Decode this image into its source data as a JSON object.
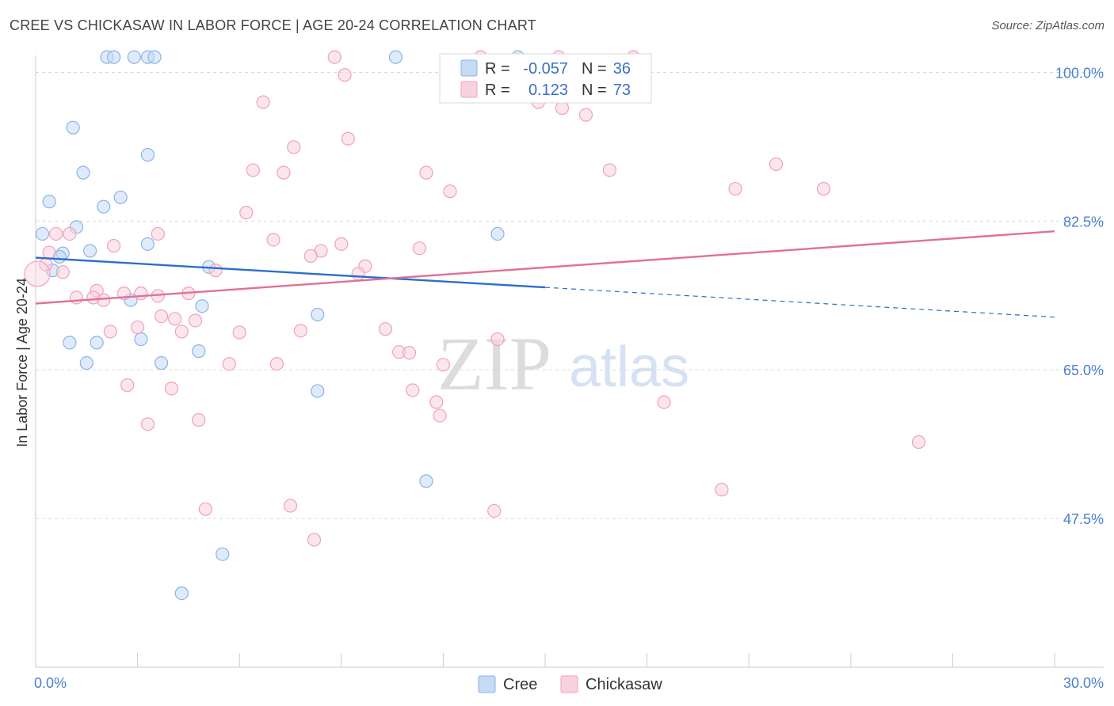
{
  "chart_data": {
    "type": "scatter",
    "title": "CREE VS CHICKASAW IN LABOR FORCE | AGE 20-24 CORRELATION CHART",
    "source": "Source: ZipAtlas.com",
    "ylabel": "In Labor Force | Age 20-24",
    "xlabel": "",
    "xlim": [
      0,
      30
    ],
    "ylim": [
      30,
      102
    ],
    "x_ticks": [
      {
        "value": 0,
        "label": "0.0%"
      },
      {
        "value": 30,
        "label": "30.0%"
      }
    ],
    "y_ticks": [
      {
        "value": 100,
        "label": "100.0%"
      },
      {
        "value": 82.5,
        "label": "82.5%"
      },
      {
        "value": 65,
        "label": "65.0%"
      },
      {
        "value": 47.5,
        "label": "47.5%"
      }
    ],
    "grid": true,
    "legend_position": "top-center",
    "series": [
      {
        "name": "Cree",
        "color": "#8ab4e8",
        "fill": "#c5daf5",
        "line_color": "#2b6fcc",
        "R": "-0.057",
        "N": "36",
        "trend": {
          "x0": 0,
          "y0": 78.2,
          "x1": 15,
          "y1": 74.7,
          "dash_to": 30,
          "dash_y": 71.2
        },
        "points": [
          [
            2.1,
            101.8
          ],
          [
            2.3,
            101.8
          ],
          [
            2.9,
            101.8
          ],
          [
            3.3,
            101.8
          ],
          [
            3.5,
            101.8
          ],
          [
            10.6,
            101.8
          ],
          [
            14.2,
            101.8
          ],
          [
            1.1,
            93.5
          ],
          [
            3.3,
            90.3
          ],
          [
            1.4,
            88.2
          ],
          [
            0.4,
            84.8
          ],
          [
            2.5,
            85.3
          ],
          [
            2.0,
            84.2
          ],
          [
            1.2,
            81.8
          ],
          [
            0.2,
            81.0
          ],
          [
            3.3,
            79.8
          ],
          [
            1.6,
            79.0
          ],
          [
            0.8,
            78.7
          ],
          [
            0.7,
            78.3
          ],
          [
            0.5,
            76.7
          ],
          [
            5.1,
            77.1
          ],
          [
            2.8,
            73.2
          ],
          [
            4.9,
            72.5
          ],
          [
            8.3,
            71.5
          ],
          [
            3.1,
            68.6
          ],
          [
            1.0,
            68.2
          ],
          [
            1.8,
            68.2
          ],
          [
            4.8,
            67.2
          ],
          [
            1.5,
            65.8
          ],
          [
            3.7,
            65.8
          ],
          [
            8.3,
            62.5
          ],
          [
            11.5,
            51.9
          ],
          [
            5.5,
            43.3
          ],
          [
            4.3,
            38.7
          ],
          [
            13.6,
            81.0
          ]
        ]
      },
      {
        "name": "Chickasaw",
        "color": "#f0a0bc",
        "fill": "#f9d2e0",
        "line_color": "#e0709a",
        "R": "0.123",
        "N": "73",
        "trend": {
          "x0": 0,
          "y0": 72.8,
          "x1": 30,
          "y1": 81.3
        },
        "points": [
          [
            8.8,
            101.8
          ],
          [
            15.4,
            101.8
          ],
          [
            17.6,
            101.8
          ],
          [
            13.1,
            101.8
          ],
          [
            9.1,
            99.7
          ],
          [
            6.7,
            96.5
          ],
          [
            14.8,
            96.5
          ],
          [
            15.5,
            95.8
          ],
          [
            16.2,
            95.0
          ],
          [
            9.2,
            92.2
          ],
          [
            7.6,
            91.2
          ],
          [
            21.8,
            89.2
          ],
          [
            6.4,
            88.5
          ],
          [
            7.3,
            88.2
          ],
          [
            11.5,
            88.2
          ],
          [
            16.9,
            88.5
          ],
          [
            20.6,
            86.3
          ],
          [
            23.2,
            86.3
          ],
          [
            12.2,
            86.0
          ],
          [
            6.2,
            83.5
          ],
          [
            0.6,
            81.0
          ],
          [
            1.0,
            81.0
          ],
          [
            3.6,
            81.0
          ],
          [
            7.0,
            80.3
          ],
          [
            9.0,
            79.8
          ],
          [
            2.3,
            79.6
          ],
          [
            11.3,
            79.3
          ],
          [
            8.4,
            79.0
          ],
          [
            0.4,
            78.8
          ],
          [
            8.1,
            78.4
          ],
          [
            0.3,
            77.4
          ],
          [
            9.7,
            77.2
          ],
          [
            5.3,
            76.7
          ],
          [
            0.8,
            76.5
          ],
          [
            9.5,
            76.3
          ],
          [
            1.8,
            74.3
          ],
          [
            3.1,
            74.0
          ],
          [
            2.6,
            74.0
          ],
          [
            4.5,
            74.0
          ],
          [
            1.7,
            73.5
          ],
          [
            1.2,
            73.5
          ],
          [
            2.0,
            73.2
          ],
          [
            3.6,
            73.7
          ],
          [
            3.7,
            71.3
          ],
          [
            4.1,
            71.0
          ],
          [
            4.7,
            70.8
          ],
          [
            3.0,
            70.0
          ],
          [
            2.2,
            69.5
          ],
          [
            4.3,
            69.5
          ],
          [
            6.0,
            69.4
          ],
          [
            7.8,
            69.6
          ],
          [
            10.3,
            69.8
          ],
          [
            13.6,
            68.6
          ],
          [
            10.7,
            67.1
          ],
          [
            11.0,
            67.0
          ],
          [
            5.7,
            65.7
          ],
          [
            7.1,
            65.7
          ],
          [
            12.0,
            65.6
          ],
          [
            2.7,
            63.2
          ],
          [
            4.0,
            62.8
          ],
          [
            11.1,
            62.6
          ],
          [
            11.8,
            61.2
          ],
          [
            18.5,
            61.2
          ],
          [
            11.9,
            59.6
          ],
          [
            4.8,
            59.1
          ],
          [
            3.3,
            58.6
          ],
          [
            26.0,
            56.5
          ],
          [
            20.2,
            50.9
          ],
          [
            5.0,
            48.6
          ],
          [
            7.5,
            49.0
          ],
          [
            13.5,
            48.4
          ],
          [
            8.2,
            45.0
          ]
        ]
      }
    ]
  },
  "legend": {
    "r_label": "R =",
    "n_label": "N ="
  },
  "watermark": {
    "zip": "ZIP",
    "atlas": "atlas"
  }
}
